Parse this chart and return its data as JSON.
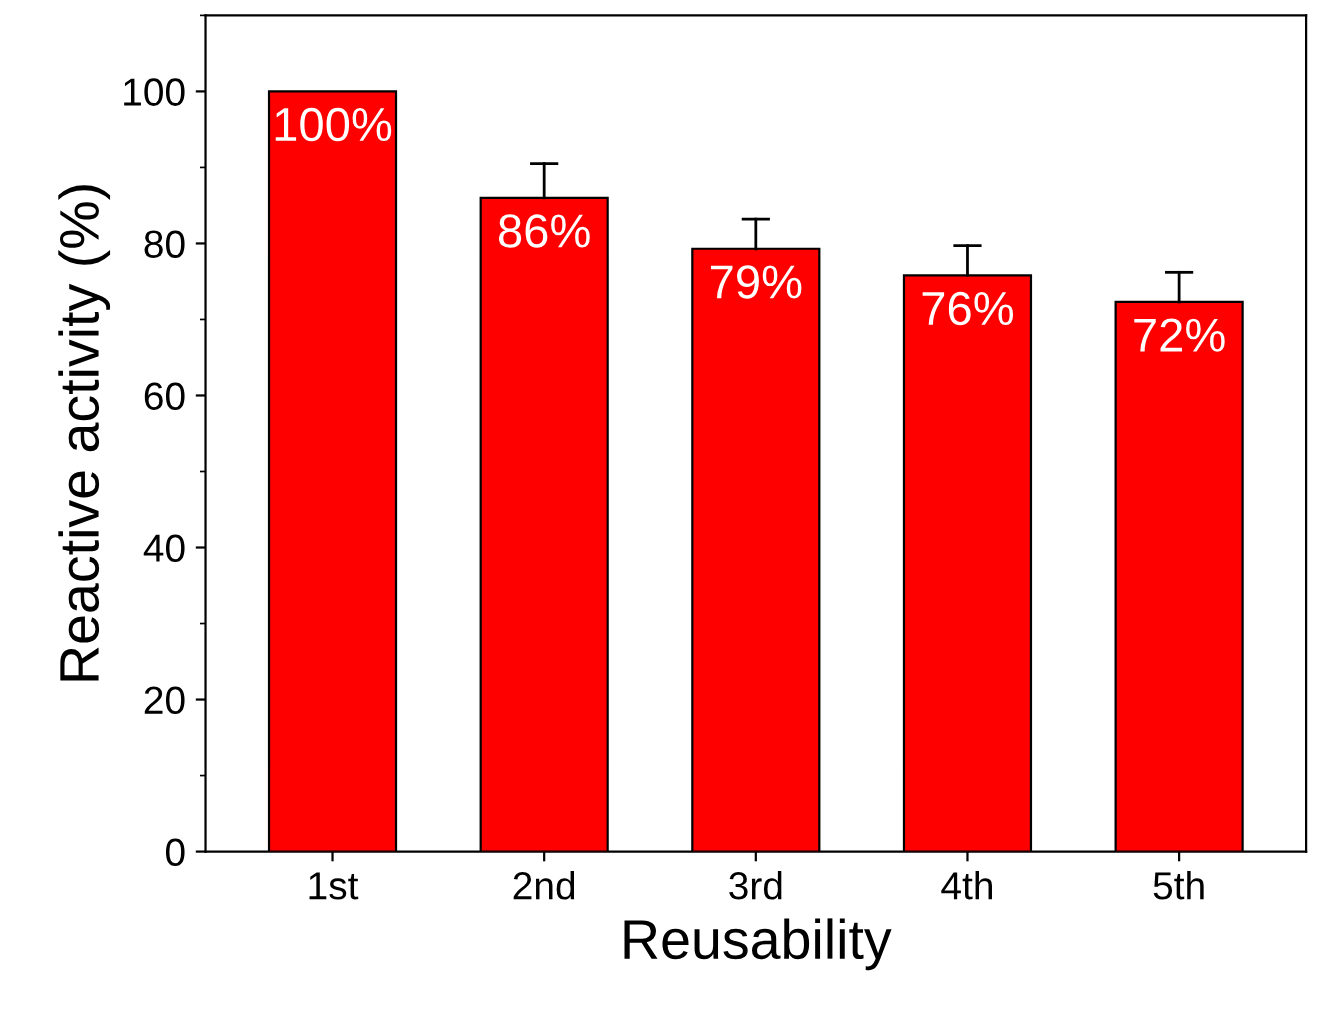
{
  "chart_data": {
    "type": "bar",
    "xlabel": "Reusability",
    "ylabel": "Reactive activity (%)",
    "categories": [
      "1st",
      "2nd",
      "3rd",
      "4th",
      "5th"
    ],
    "values": [
      100,
      86,
      79.3,
      75.8,
      72.3
    ],
    "errors": [
      null,
      [
        86,
        90.5
      ],
      [
        79.3,
        83.2
      ],
      [
        75.8,
        79.7
      ],
      [
        72.3,
        76.2
      ]
    ],
    "value_labels": [
      "100%",
      "86%",
      "79%",
      "76%",
      "72%"
    ],
    "color": "#ff0000",
    "ylim": [
      0,
      110
    ],
    "yticks": [
      0,
      20,
      40,
      60,
      80,
      100
    ],
    "grid": false,
    "legend": false
  }
}
